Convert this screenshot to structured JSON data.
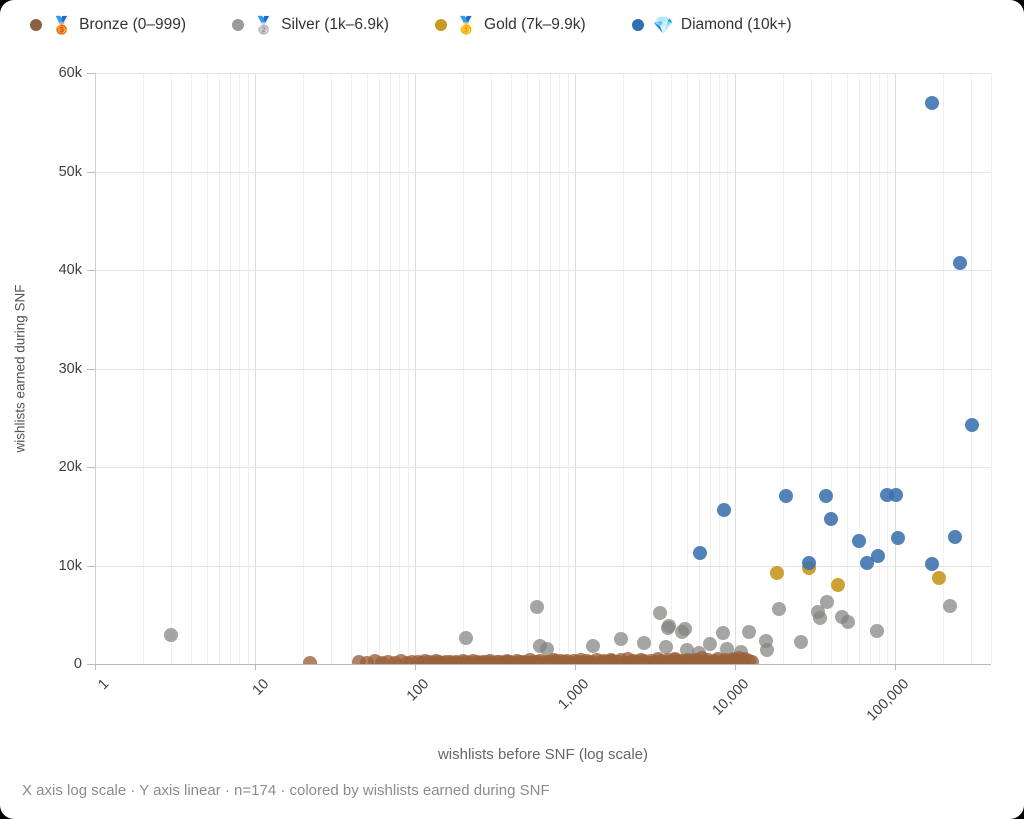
{
  "legend": {
    "items": [
      {
        "icon": "🥉",
        "label": "Bronze (0–999)",
        "color": "#8b5f41"
      },
      {
        "icon": "🥈",
        "label": "Silver (1k–6.9k)",
        "color": "#9a9a9a"
      },
      {
        "icon": "🥇",
        "label": "Gold (7k–9.9k)",
        "color": "#c79a28"
      },
      {
        "icon": "💎",
        "label": "Diamond (10k+)",
        "color": "#2f6fb3"
      }
    ]
  },
  "axes": {
    "x_title": "wishlists before SNF (log scale)",
    "y_title": "wishlists earned during SNF"
  },
  "footer": {
    "note": "X axis log scale · Y axis linear · n=174 · colored by wishlists earned during SNF"
  },
  "chart_data": {
    "type": "scatter",
    "title": "",
    "xlabel": "wishlists before SNF (log scale)",
    "ylabel": "wishlists earned during SNF",
    "x_scale": "log",
    "y_scale": "linear",
    "xlim": [
      1,
      400000
    ],
    "ylim": [
      0,
      60000
    ],
    "grid": true,
    "legend_position": "top-left",
    "n": 174,
    "xticks": {
      "values": [
        1,
        10,
        100,
        1000,
        10000,
        100000
      ],
      "labels": [
        "1",
        "10",
        "100",
        "1,000",
        "10,000",
        "100,000"
      ]
    },
    "yticks": {
      "values": [
        0,
        10000,
        20000,
        30000,
        40000,
        50000,
        60000
      ],
      "labels": [
        "0",
        "10k",
        "20k",
        "30k",
        "40k",
        "50k",
        "60k"
      ]
    },
    "series": [
      {
        "name": "Silver (1k–6.9k)",
        "color": "rgba(130,130,128,0.72)",
        "points": [
          [
            3,
            2900
          ],
          [
            210,
            2650
          ],
          [
            580,
            5750
          ],
          [
            605,
            1800
          ],
          [
            670,
            1500
          ],
          [
            1300,
            1800
          ],
          [
            1950,
            2550
          ],
          [
            2700,
            2100
          ],
          [
            3400,
            5200
          ],
          [
            3900,
            3900
          ],
          [
            4700,
            3200
          ],
          [
            3700,
            1700
          ],
          [
            5000,
            1400
          ],
          [
            3800,
            3700
          ],
          [
            4900,
            3600
          ],
          [
            6000,
            1100
          ],
          [
            7000,
            2000
          ],
          [
            8400,
            3100
          ],
          [
            9000,
            1500
          ],
          [
            11000,
            1200
          ],
          [
            12300,
            3200
          ],
          [
            16000,
            1400
          ],
          [
            15700,
            2300
          ],
          [
            19000,
            5600
          ],
          [
            26000,
            2200
          ],
          [
            33000,
            5300
          ],
          [
            34000,
            4700
          ],
          [
            38000,
            6300
          ],
          [
            47000,
            4800
          ],
          [
            51000,
            4300
          ],
          [
            78000,
            3400
          ],
          [
            223000,
            5900
          ]
        ]
      },
      {
        "name": "Bronze (0–999)",
        "color": "rgba(154,96,58,0.78)",
        "points": [
          [
            22,
            150
          ],
          [
            45,
            200
          ],
          [
            50,
            120
          ],
          [
            56,
            260
          ],
          [
            62,
            90
          ],
          [
            68,
            180
          ],
          [
            75,
            140
          ],
          [
            82,
            300
          ],
          [
            89,
            130
          ],
          [
            96,
            210
          ],
          [
            105,
            160
          ],
          [
            110,
            90
          ],
          [
            116,
            280
          ],
          [
            122,
            200
          ],
          [
            130,
            120
          ],
          [
            136,
            330
          ],
          [
            142,
            180
          ],
          [
            150,
            100
          ],
          [
            157,
            250
          ],
          [
            165,
            160
          ],
          [
            172,
            90
          ],
          [
            180,
            210
          ],
          [
            190,
            140
          ],
          [
            200,
            310
          ],
          [
            210,
            170
          ],
          [
            221,
            110
          ],
          [
            232,
            260
          ],
          [
            243,
            190
          ],
          [
            255,
            130
          ],
          [
            268,
            220
          ],
          [
            281,
            160
          ],
          [
            295,
            350
          ],
          [
            310,
            120
          ],
          [
            325,
            240
          ],
          [
            341,
            180
          ],
          [
            358,
            100
          ],
          [
            376,
            290
          ],
          [
            394,
            200
          ],
          [
            414,
            140
          ],
          [
            434,
            330
          ],
          [
            456,
            170
          ],
          [
            478,
            250
          ],
          [
            502,
            120
          ],
          [
            527,
            380
          ],
          [
            553,
            210
          ],
          [
            580,
            160
          ],
          [
            609,
            300
          ],
          [
            639,
            130
          ],
          [
            671,
            240
          ],
          [
            704,
            180
          ],
          [
            739,
            420
          ],
          [
            776,
            150
          ],
          [
            814,
            280
          ],
          [
            854,
            200
          ],
          [
            897,
            350
          ],
          [
            941,
            120
          ],
          [
            988,
            260
          ],
          [
            1037,
            190
          ],
          [
            1088,
            450
          ],
          [
            1142,
            160
          ],
          [
            1199,
            310
          ],
          [
            1258,
            230
          ],
          [
            1320,
            140
          ],
          [
            1386,
            380
          ],
          [
            1454,
            200
          ],
          [
            1526,
            290
          ],
          [
            1602,
            160
          ],
          [
            1681,
            420
          ],
          [
            1764,
            250
          ],
          [
            1852,
            180
          ],
          [
            1943,
            360
          ],
          [
            2040,
            130
          ],
          [
            2141,
            480
          ],
          [
            2247,
            220
          ],
          [
            2358,
            300
          ],
          [
            2475,
            170
          ],
          [
            2597,
            400
          ],
          [
            2726,
            260
          ],
          [
            2861,
            140
          ],
          [
            3003,
            340
          ],
          [
            3152,
            210
          ],
          [
            3308,
            500
          ],
          [
            3472,
            280
          ],
          [
            3644,
            160
          ],
          [
            3824,
            390
          ],
          [
            4014,
            240
          ],
          [
            4213,
            550
          ],
          [
            4421,
            190
          ],
          [
            4640,
            320
          ],
          [
            4870,
            260
          ],
          [
            5112,
            440
          ],
          [
            5365,
            150
          ],
          [
            5631,
            370
          ],
          [
            5910,
            280
          ],
          [
            6203,
            600
          ],
          [
            6510,
            220
          ],
          [
            6833,
            410
          ],
          [
            7171,
            170
          ],
          [
            7526,
            330
          ],
          [
            7899,
            540
          ],
          [
            8290,
            250
          ],
          [
            8701,
            450
          ],
          [
            9132,
            190
          ],
          [
            9585,
            380
          ],
          [
            10060,
            290
          ],
          [
            10558,
            620
          ],
          [
            11081,
            210
          ],
          [
            11630,
            470
          ],
          [
            12206,
            340
          ],
          [
            12811,
            160
          ],
          [
            380,
            220
          ],
          [
            520,
            140
          ],
          [
            760,
            310
          ],
          [
            1150,
            120
          ],
          [
            1700,
            340
          ],
          [
            2300,
            210
          ],
          [
            3100,
            130
          ],
          [
            4200,
            360
          ],
          [
            5600,
            240
          ],
          [
            7400,
            130
          ],
          [
            9900,
            520
          ]
        ]
      },
      {
        "name": "Gold (7k–9.9k)",
        "color": "rgba(198,152,31,0.9)",
        "points": [
          [
            18500,
            9200
          ],
          [
            29000,
            9700
          ],
          [
            44000,
            8000
          ],
          [
            190000,
            8700
          ]
        ]
      },
      {
        "name": "Diamond (10k+)",
        "color": "rgba(58,113,173,0.88)",
        "points": [
          [
            6100,
            11300
          ],
          [
            8600,
            15600
          ],
          [
            21000,
            17100
          ],
          [
            29000,
            10300
          ],
          [
            37000,
            17100
          ],
          [
            40000,
            14700
          ],
          [
            60000,
            12500
          ],
          [
            67000,
            10300
          ],
          [
            79000,
            11000
          ],
          [
            90000,
            17200
          ],
          [
            102000,
            17200
          ],
          [
            105000,
            12800
          ],
          [
            172000,
            57000
          ],
          [
            172000,
            10200
          ],
          [
            238000,
            12900
          ],
          [
            255000,
            40700
          ],
          [
            303000,
            24300
          ]
        ]
      }
    ]
  }
}
